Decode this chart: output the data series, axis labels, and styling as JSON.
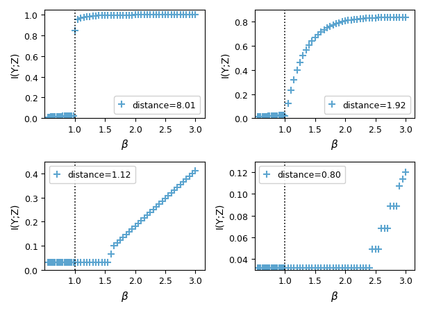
{
  "subplots": [
    {
      "distance": "8.01",
      "legend_loc": "lower right",
      "ylim": [
        0,
        1.05
      ],
      "yticks": [
        0.0,
        0.2,
        0.4,
        0.6,
        0.8,
        1.0
      ],
      "curve_type": "sharp_jump"
    },
    {
      "distance": "1.92",
      "legend_loc": "lower right",
      "ylim": [
        0,
        0.9
      ],
      "yticks": [
        0.0,
        0.2,
        0.4,
        0.6,
        0.8
      ],
      "curve_type": "log_rise"
    },
    {
      "distance": "1.12",
      "legend_loc": "upper left",
      "ylim": [
        0,
        0.45
      ],
      "yticks": [
        0.0,
        0.1,
        0.2,
        0.3,
        0.4
      ],
      "curve_type": "linear_rise"
    },
    {
      "distance": "0.80",
      "legend_loc": "upper left",
      "ylim": [
        0.03,
        0.13
      ],
      "yticks": [
        0.04,
        0.06,
        0.08,
        0.1,
        0.12
      ],
      "curve_type": "slow_rise"
    }
  ],
  "xlim": [
    0.5,
    3.15
  ],
  "xticks": [
    1.0,
    1.5,
    2.0,
    2.5,
    3.0
  ],
  "beta_line": 1.0,
  "marker_color": "#5ba4cf",
  "marker": "+",
  "markersize": 7,
  "markeredgewidth": 1.5,
  "xlabel": "$\\beta$",
  "ylabel": "I(Y;Z)"
}
